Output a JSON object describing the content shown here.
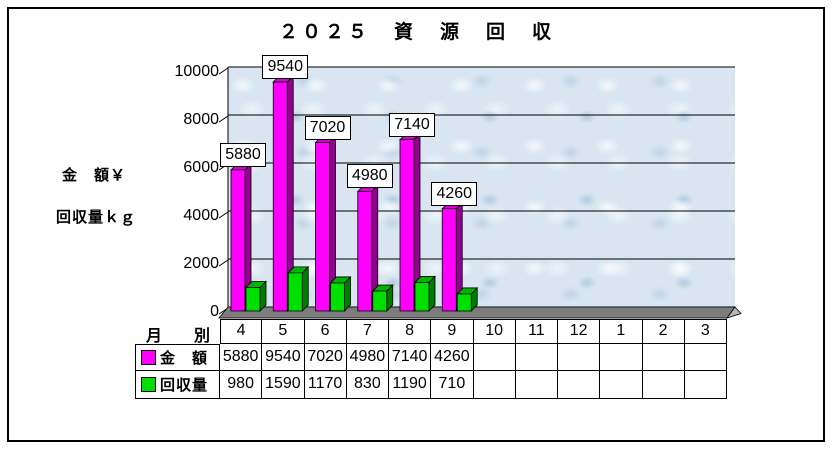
{
  "chart_data": {
    "type": "bar",
    "style": "excel-3d-column",
    "title": "２０２５　資　源　回　収",
    "categories": [
      "4",
      "5",
      "6",
      "7",
      "8",
      "9",
      "10",
      "11",
      "12",
      "1",
      "2",
      "3"
    ],
    "series": [
      {
        "name": "金　額",
        "unit": "¥",
        "color": "#ff00ff",
        "values": [
          5880,
          9540,
          7020,
          4980,
          7140,
          4260,
          null,
          null,
          null,
          null,
          null,
          null
        ]
      },
      {
        "name": "回収量",
        "unit": "kg",
        "color": "#00dd00",
        "values": [
          980,
          1590,
          1170,
          830,
          1190,
          710,
          null,
          null,
          null,
          null,
          null,
          null
        ]
      }
    ],
    "data_labels": [
      "5880",
      "9540",
      "7020",
      "4980",
      "7140",
      "4260"
    ],
    "xlabel": "月　別",
    "ylabel_line1": "金　額￥",
    "ylabel_line2": "回収量ｋｇ",
    "ylim": [
      0,
      10000
    ],
    "ytick_step": 2000,
    "yticks": [
      "10000",
      "8000",
      "6000",
      "4000",
      "2000",
      "0"
    ],
    "grid": true,
    "legend_position": "table-rows-left"
  },
  "table": {
    "row_header_label": "月　別",
    "columns": [
      "4",
      "5",
      "6",
      "7",
      "8",
      "9",
      "10",
      "11",
      "12",
      "1",
      "2",
      "3"
    ],
    "rows": [
      {
        "label": "金　額",
        "key_color": "#ff00ff",
        "values": [
          "5880",
          "9540",
          "7020",
          "4980",
          "7140",
          "4260",
          "",
          "",
          "",
          "",
          "",
          ""
        ]
      },
      {
        "label": "回収量",
        "key_color": "#00dd00",
        "values": [
          "980",
          "1590",
          "1170",
          "830",
          "1190",
          "710",
          "",
          "",
          "",
          "",
          "",
          ""
        ]
      }
    ]
  },
  "colors": {
    "amount_front": "#ff00ff",
    "amount_side": "#94008f",
    "amount_top": "#d900d4",
    "quantity_front": "#00e000",
    "quantity_side": "#007d00",
    "quantity_top": "#00b400",
    "wall_background": "#d9e6f1",
    "floor": "#7d7d7d",
    "floor_bevel": "#b5b5b5",
    "grid_line": "#000000",
    "outer_frame": "#000000",
    "label_box_background": "#ffffff"
  }
}
